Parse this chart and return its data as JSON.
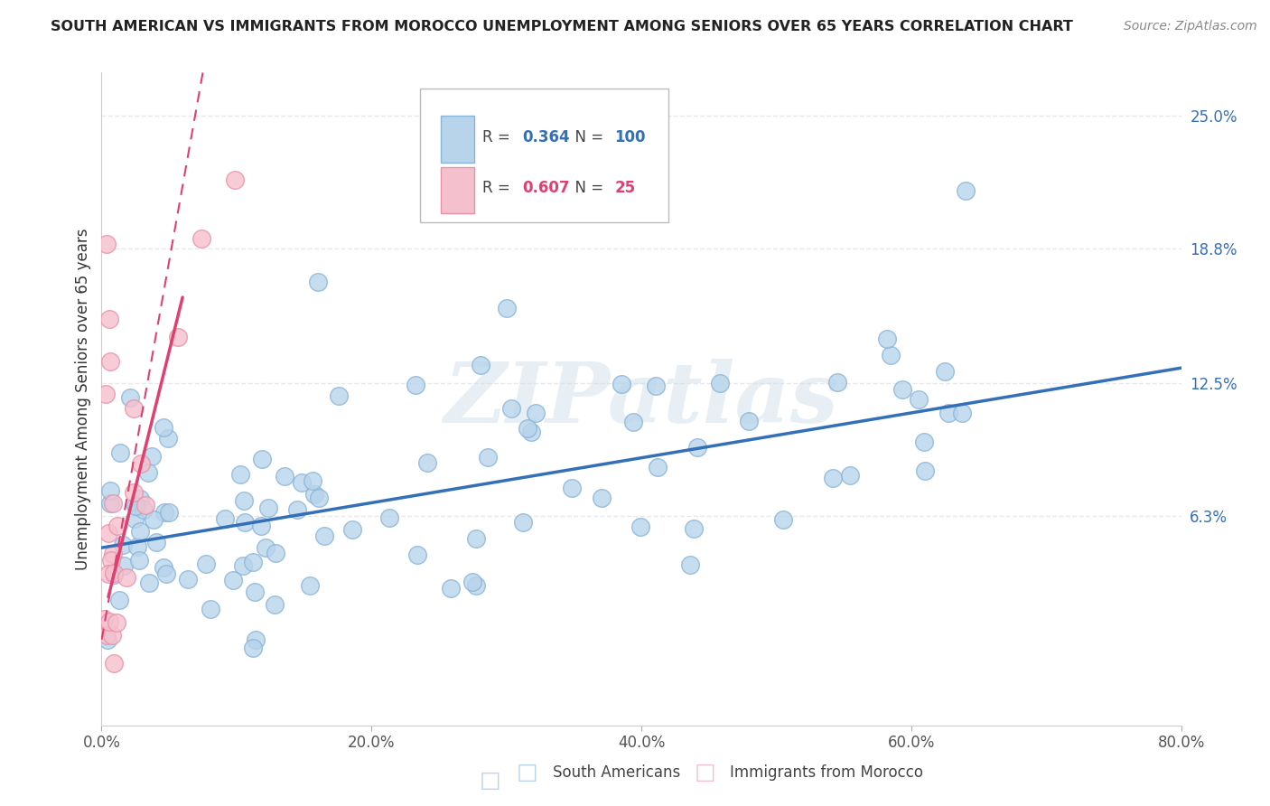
{
  "title": "SOUTH AMERICAN VS IMMIGRANTS FROM MOROCCO UNEMPLOYMENT AMONG SENIORS OVER 65 YEARS CORRELATION CHART",
  "source": "Source: ZipAtlas.com",
  "ylabel": "Unemployment Among Seniors over 65 years",
  "blue_R": 0.364,
  "blue_N": 100,
  "pink_R": 0.607,
  "pink_N": 25,
  "blue_color": "#b8d4eb",
  "blue_edge": "#88b4d8",
  "pink_color": "#f5c0ce",
  "pink_edge": "#e890a8",
  "blue_line_color": "#3370b8",
  "pink_line_color": "#e04070",
  "watermark": "ZIPatlas",
  "xlim": [
    0.0,
    80.0
  ],
  "ylim": [
    -3.5,
    27.0
  ],
  "xtick_labels": [
    "0.0%",
    "20.0%",
    "40.0%",
    "60.0%",
    "80.0%"
  ],
  "xtick_vals": [
    0,
    20,
    40,
    60,
    80
  ],
  "ytick_right_labels": [
    "6.3%",
    "12.5%",
    "18.8%",
    "25.0%"
  ],
  "ytick_right_vals": [
    6.3,
    12.5,
    18.8,
    25.0
  ],
  "background_color": "#ffffff",
  "grid_color": "#e8e8e8",
  "blue_reg_x0": 0.0,
  "blue_reg_y0": 4.8,
  "blue_reg_x1": 80.0,
  "blue_reg_y1": 13.2,
  "pink_solid_x0": 0.5,
  "pink_solid_y0": 2.5,
  "pink_solid_x1": 6.0,
  "pink_solid_y1": 16.5,
  "pink_dash_x0": 0.0,
  "pink_dash_y0": 0.5,
  "pink_dash_x1": 7.5,
  "pink_dash_y1": 27.0
}
